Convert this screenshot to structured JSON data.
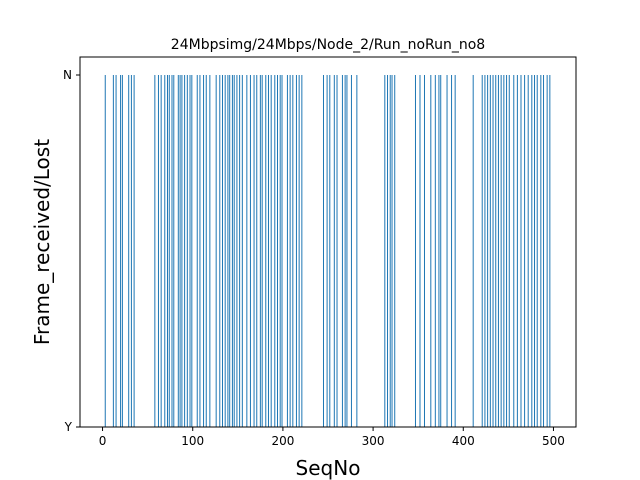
{
  "chart_data": {
    "type": "bar",
    "title": "24Mbpsimg/24Mbps/Node_2/Run_noRun_no8",
    "xlabel": "SeqNo",
    "ylabel": "Frame_received/Lost",
    "xlim": [
      -25,
      525
    ],
    "x_ticks": [
      0,
      100,
      200,
      300,
      400,
      500
    ],
    "y_categories": [
      "Y",
      "N"
    ],
    "bar_color": "#1f77b4",
    "lost_seq": [
      3,
      12,
      15,
      20,
      22,
      29,
      32,
      35,
      58,
      62,
      65,
      69,
      72,
      74,
      77,
      79,
      84,
      86,
      88,
      91,
      94,
      97,
      99,
      105,
      108,
      112,
      115,
      119,
      126,
      130,
      133,
      136,
      139,
      141,
      144,
      146,
      149,
      152,
      155,
      160,
      164,
      168,
      171,
      175,
      177,
      181,
      184,
      187,
      191,
      194,
      197,
      199,
      205,
      208,
      211,
      215,
      218,
      221,
      245,
      249,
      252,
      257,
      260,
      266,
      269,
      271,
      276,
      282,
      313,
      316,
      319,
      321,
      324,
      347,
      352,
      357,
      364,
      369,
      373,
      375,
      382,
      387,
      391,
      411,
      421,
      424,
      427,
      430,
      433,
      436,
      439,
      442,
      445,
      448,
      451,
      456,
      460,
      464,
      468,
      472,
      476,
      479,
      482,
      486,
      489,
      493,
      496
    ]
  }
}
